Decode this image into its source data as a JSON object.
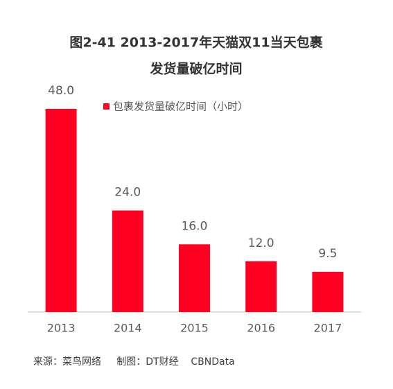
{
  "chart_data": {
    "type": "bar",
    "title": [
      "图2-41  2013-2017年天猫双11当天包裹",
      "发货量破亿时间"
    ],
    "legend": "包裹发货量破亿时间（小时）",
    "categories": [
      "2013",
      "2014",
      "2015",
      "2016",
      "2017"
    ],
    "values": [
      48,
      24,
      16,
      12,
      9.5
    ],
    "value_labels": [
      "48.0",
      "24.0",
      "16.0",
      "12.0",
      "9.5"
    ],
    "color": "#ff0022",
    "source": "来源：菜鸟网络     制图：DT财经    CBNData"
  }
}
